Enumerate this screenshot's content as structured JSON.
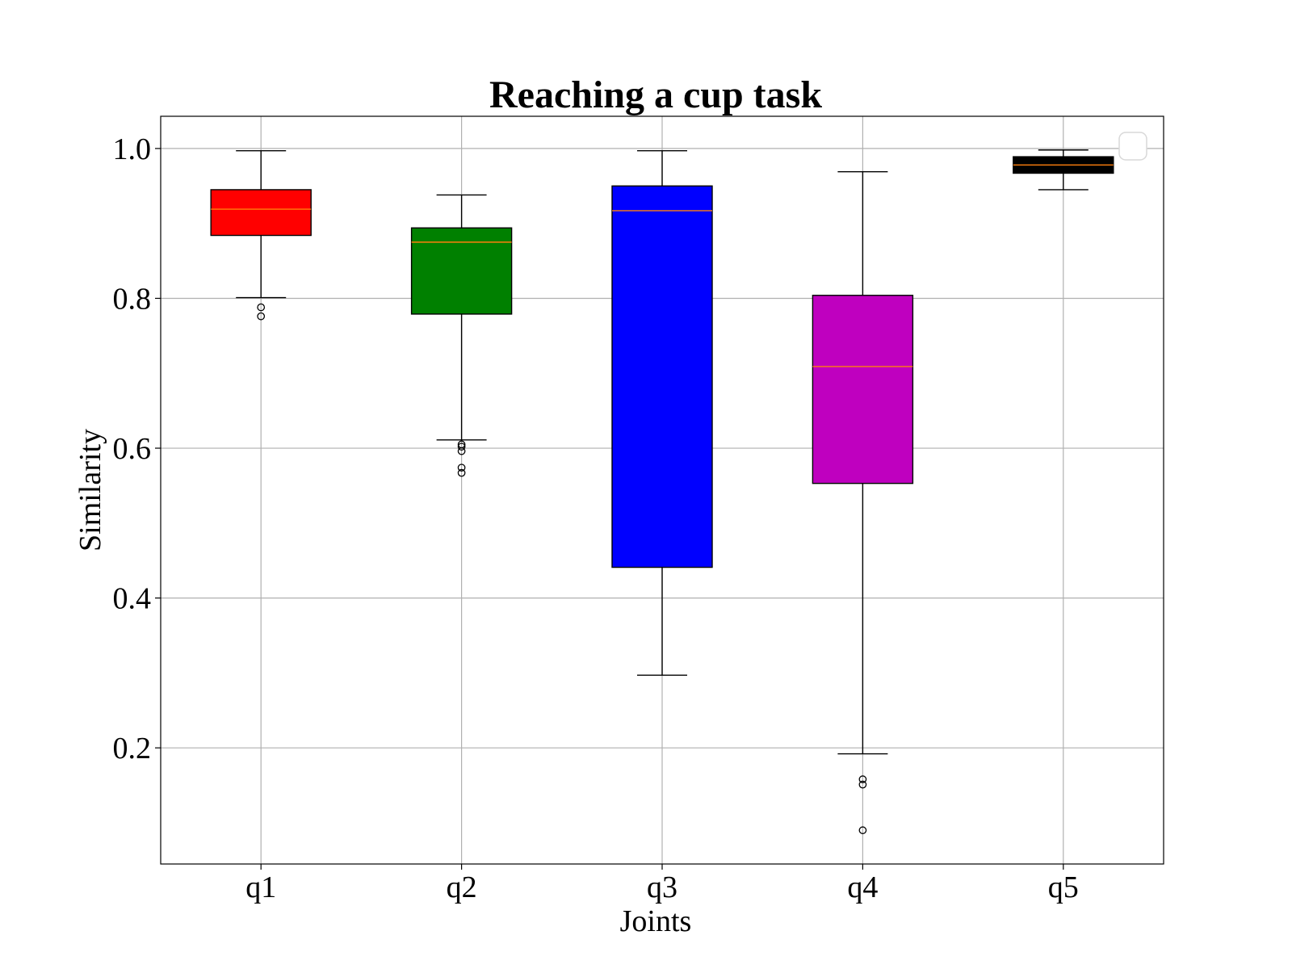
{
  "chart_data": {
    "type": "box",
    "title": "Reaching a cup task",
    "xlabel": "Joints",
    "ylabel": "Similarity",
    "categories": [
      "q1",
      "q2",
      "q3",
      "q4",
      "q5"
    ],
    "ylim": [
      0.045,
      1.043
    ],
    "yticks": [
      0.2,
      0.4,
      0.6,
      0.8,
      1.0
    ],
    "ytick_labels": [
      "0.2",
      "0.4",
      "0.6",
      "0.8",
      "1.0"
    ],
    "grid": true,
    "legend": {
      "placement": "top-right",
      "entries": []
    },
    "boxes": [
      {
        "category": "q1",
        "whisker_low": 0.801,
        "q1": 0.884,
        "median": 0.919,
        "q3": 0.945,
        "whisker_high": 0.997,
        "outliers": [
          0.788,
          0.776
        ],
        "color": "#ff0000"
      },
      {
        "category": "q2",
        "whisker_low": 0.611,
        "q1": 0.779,
        "median": 0.875,
        "q3": 0.894,
        "whisker_high": 0.938,
        "outliers": [
          0.605,
          0.602,
          0.596,
          0.574,
          0.567
        ],
        "color": "#008000"
      },
      {
        "category": "q3",
        "whisker_low": 0.297,
        "q1": 0.441,
        "median": 0.917,
        "q3": 0.95,
        "whisker_high": 0.997,
        "outliers": [],
        "color": "#0000ff"
      },
      {
        "category": "q4",
        "whisker_low": 0.192,
        "q1": 0.553,
        "median": 0.709,
        "q3": 0.804,
        "whisker_high": 0.969,
        "outliers": [
          0.158,
          0.151,
          0.09
        ],
        "color": "#bf00bf"
      },
      {
        "category": "q5",
        "whisker_low": 0.945,
        "q1": 0.967,
        "median": 0.978,
        "q3": 0.989,
        "whisker_high": 0.998,
        "outliers": [],
        "color": "#000000"
      }
    ],
    "median_color": "#ff7f0e"
  }
}
